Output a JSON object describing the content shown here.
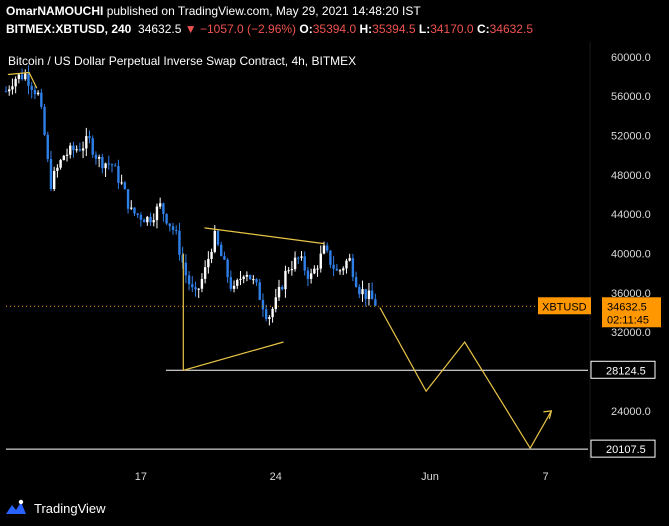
{
  "header": {
    "author": "OmarNAMOUCHI",
    "published_text": "published on TradingView.com, May 29, 2021 14:48:20 IST",
    "symbol": "BITMEX:XBTUSD, 240",
    "last": "34632.5",
    "change": "▼ −1057.0 (−2.96%)",
    "open_label": "O:",
    "open": "35394.0",
    "high_label": "H:",
    "high": "35394.5",
    "low_label": "L:",
    "low": "34170.0",
    "close_label": "C:",
    "close": "34632.5"
  },
  "footer": {
    "brand": "TradingView"
  },
  "colors": {
    "up": "#ffffff",
    "down": "#2f7fe8",
    "drawing": "#e8c547",
    "price_tag": "#ff9800",
    "header_red": "#ef5350"
  },
  "chart_data": {
    "type": "candlestick",
    "title": "Bitcoin / US Dollar Perpetual Inverse Swap Contract, 4h, BITMEX",
    "ylim": [
      18800,
      61500
    ],
    "y_ticks": [
      24000,
      28000,
      32000,
      36000,
      40000,
      44000,
      48000,
      52000,
      56000,
      60000
    ],
    "y_tick_labels": [
      "24000.0",
      "28000.0",
      "32000.0",
      "36000.0",
      "40000.0",
      "44000.0",
      "48000.0",
      "52000.0",
      "56000.0",
      "60000.0"
    ],
    "x_unit": "days since May 10, 2021 00:00",
    "xlim": [
      0,
      30.2
    ],
    "x_ticks": [
      {
        "x": 7,
        "label": "17"
      },
      {
        "x": 14,
        "label": "24"
      },
      {
        "x": 22,
        "label": "Jun"
      },
      {
        "x": 28,
        "label": "7"
      }
    ],
    "last_price": {
      "symbol": "XBTUSD",
      "value": 34632.5,
      "label": "34632.5",
      "countdown": "02:11:45"
    },
    "horizontal_levels": [
      {
        "value": 28124.5,
        "label": "28124.5"
      },
      {
        "value": 20107.5,
        "label": "20107.5"
      }
    ],
    "anchors": [
      [
        0.0,
        56500
      ],
      [
        0.4,
        57800
      ],
      [
        1.0,
        58200
      ],
      [
        1.7,
        56000
      ],
      [
        2.0,
        52000
      ],
      [
        2.3,
        47000
      ],
      [
        3.0,
        50000
      ],
      [
        4.0,
        51000
      ],
      [
        4.3,
        51500
      ],
      [
        4.8,
        49500
      ],
      [
        5.5,
        49000
      ],
      [
        6.0,
        47000
      ],
      [
        6.5,
        44200
      ],
      [
        7.4,
        43500
      ],
      [
        8.0,
        44800
      ],
      [
        8.8,
        42000
      ],
      [
        9.3,
        38000
      ],
      [
        9.8,
        35500
      ],
      [
        10.3,
        38000
      ],
      [
        10.8,
        41800
      ],
      [
        11.2,
        39500
      ],
      [
        11.8,
        36000
      ],
      [
        12.4,
        38500
      ],
      [
        13.0,
        36500
      ],
      [
        13.6,
        33500
      ],
      [
        14.0,
        35000
      ],
      [
        14.6,
        38500
      ],
      [
        15.2,
        39500
      ],
      [
        15.8,
        37500
      ],
      [
        16.5,
        40300
      ],
      [
        17.2,
        38000
      ],
      [
        17.8,
        39500
      ],
      [
        18.3,
        36500
      ],
      [
        18.8,
        35600
      ],
      [
        19.2,
        34900
      ],
      [
        19.3,
        34632.5
      ]
    ],
    "drawings": [
      {
        "name": "start-triangle",
        "points": [
          [
            0.1,
            58200
          ],
          [
            1.2,
            58400
          ],
          [
            1.6,
            56800
          ]
        ]
      },
      {
        "name": "triangle-top-line",
        "points": [
          [
            10.3,
            42600
          ],
          [
            16.5,
            41000
          ]
        ]
      },
      {
        "name": "triangle-left-line",
        "points": [
          [
            9.2,
            40000
          ],
          [
            9.2,
            28124.5
          ],
          [
            14.4,
            31000
          ]
        ]
      },
      {
        "name": "projection-path",
        "points": [
          [
            19.4,
            34500
          ],
          [
            21.8,
            26000
          ],
          [
            23.8,
            31000
          ],
          [
            27.2,
            20200
          ],
          [
            28.3,
            24000
          ]
        ]
      }
    ],
    "arrow_at": [
      28.3,
      24000
    ]
  }
}
